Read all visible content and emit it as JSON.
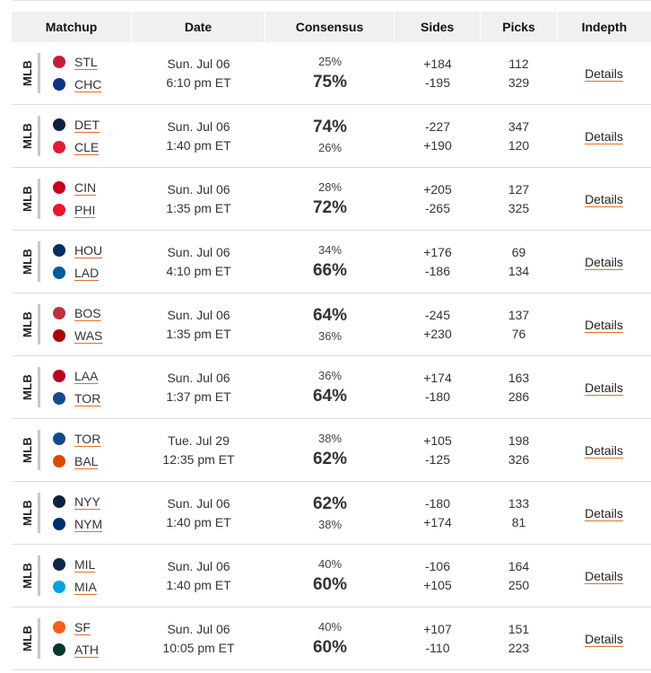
{
  "headers": {
    "matchup": "Matchup",
    "date": "Date",
    "consensus": "Consensus",
    "sides": "Sides",
    "picks": "Picks",
    "indepth": "Indepth"
  },
  "rows": [
    {
      "league": "MLB",
      "team1": "STL",
      "team2": "CHC",
      "logo1": "#c41e3a",
      "logo2": "#0e3386",
      "date": "Sun. Jul 06",
      "time": "6:10 pm ET",
      "pct1": "25%",
      "pct2": "75%",
      "big": 2,
      "side1": "+184",
      "side2": "-195",
      "picks1": "112",
      "picks2": "329",
      "details": "Details"
    },
    {
      "league": "MLB",
      "team1": "DET",
      "team2": "CLE",
      "logo1": "#0c2340",
      "logo2": "#e31937",
      "date": "Sun. Jul 06",
      "time": "1:40 pm ET",
      "pct1": "74%",
      "pct2": "26%",
      "big": 1,
      "side1": "-227",
      "side2": "+190",
      "picks1": "347",
      "picks2": "120",
      "details": "Details"
    },
    {
      "league": "MLB",
      "team1": "CIN",
      "team2": "PHI",
      "logo1": "#c6011f",
      "logo2": "#e81828",
      "date": "Sun. Jul 06",
      "time": "1:35 pm ET",
      "pct1": "28%",
      "pct2": "72%",
      "big": 2,
      "side1": "+205",
      "side2": "-265",
      "picks1": "127",
      "picks2": "325",
      "details": "Details"
    },
    {
      "league": "MLB",
      "team1": "HOU",
      "team2": "LAD",
      "logo1": "#002d62",
      "logo2": "#005a9c",
      "date": "Sun. Jul 06",
      "time": "4:10 pm ET",
      "pct1": "34%",
      "pct2": "66%",
      "big": 2,
      "side1": "+176",
      "side2": "-186",
      "picks1": "69",
      "picks2": "134",
      "details": "Details"
    },
    {
      "league": "MLB",
      "team1": "BOS",
      "team2": "WAS",
      "logo1": "#bd3039",
      "logo2": "#ab0003",
      "date": "Sun. Jul 06",
      "time": "1:35 pm ET",
      "pct1": "64%",
      "pct2": "36%",
      "big": 1,
      "side1": "-245",
      "side2": "+230",
      "picks1": "137",
      "picks2": "76",
      "details": "Details"
    },
    {
      "league": "MLB",
      "team1": "LAA",
      "team2": "TOR",
      "logo1": "#ba0021",
      "logo2": "#134a8e",
      "date": "Sun. Jul 06",
      "time": "1:37 pm ET",
      "pct1": "36%",
      "pct2": "64%",
      "big": 2,
      "side1": "+174",
      "side2": "-180",
      "picks1": "163",
      "picks2": "286",
      "details": "Details"
    },
    {
      "league": "MLB",
      "team1": "TOR",
      "team2": "BAL",
      "logo1": "#134a8e",
      "logo2": "#df4601",
      "date": "Tue. Jul 29",
      "time": "12:35 pm ET",
      "pct1": "38%",
      "pct2": "62%",
      "big": 2,
      "side1": "+105",
      "side2": "-125",
      "picks1": "198",
      "picks2": "326",
      "details": "Details"
    },
    {
      "league": "MLB",
      "team1": "NYY",
      "team2": "NYM",
      "logo1": "#0c2340",
      "logo2": "#002d72",
      "date": "Sun. Jul 06",
      "time": "1:40 pm ET",
      "pct1": "62%",
      "pct2": "38%",
      "big": 1,
      "side1": "-180",
      "side2": "+174",
      "picks1": "133",
      "picks2": "81",
      "details": "Details"
    },
    {
      "league": "MLB",
      "team1": "MIL",
      "team2": "MIA",
      "logo1": "#12284b",
      "logo2": "#00a3e0",
      "date": "Sun. Jul 06",
      "time": "1:40 pm ET",
      "pct1": "40%",
      "pct2": "60%",
      "big": 2,
      "side1": "-106",
      "side2": "+105",
      "picks1": "164",
      "picks2": "250",
      "details": "Details"
    },
    {
      "league": "MLB",
      "team1": "SF",
      "team2": "ATH",
      "logo1": "#fd5a1e",
      "logo2": "#003831",
      "date": "Sun. Jul 06",
      "time": "10:05 pm ET",
      "pct1": "40%",
      "pct2": "60%",
      "big": 2,
      "side1": "+107",
      "side2": "-110",
      "picks1": "151",
      "picks2": "223",
      "details": "Details"
    }
  ]
}
